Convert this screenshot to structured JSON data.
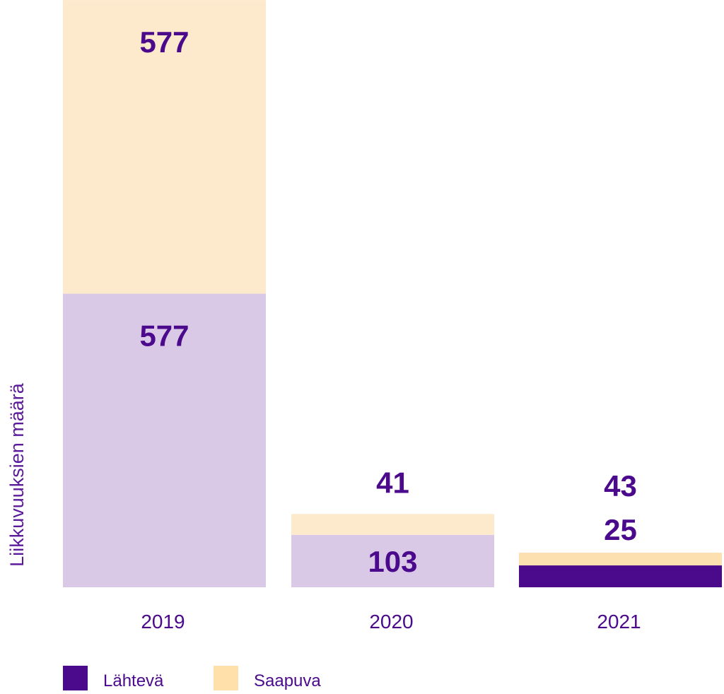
{
  "chart_data": {
    "type": "bar",
    "stacked": true,
    "categories": [
      "2019",
      "2020",
      "2021"
    ],
    "series": [
      {
        "name": "Lähtevä",
        "values": [
          577,
          103,
          43
        ],
        "color": "#4b0a8c",
        "bar_colors": [
          "#d9c8e6",
          "#d9c8e6",
          "#4b0a8c"
        ]
      },
      {
        "name": "Saapuva",
        "values": [
          577,
          41,
          25
        ],
        "color": "#ffe0ab",
        "bar_colors": [
          "#fde9cc",
          "#fde9cc",
          "#fde0b0"
        ]
      }
    ],
    "ylabel": "Liikkuvuuksien määrä",
    "xlabel": "",
    "title": "",
    "legend_position": "bottom-left",
    "grid": false
  }
}
